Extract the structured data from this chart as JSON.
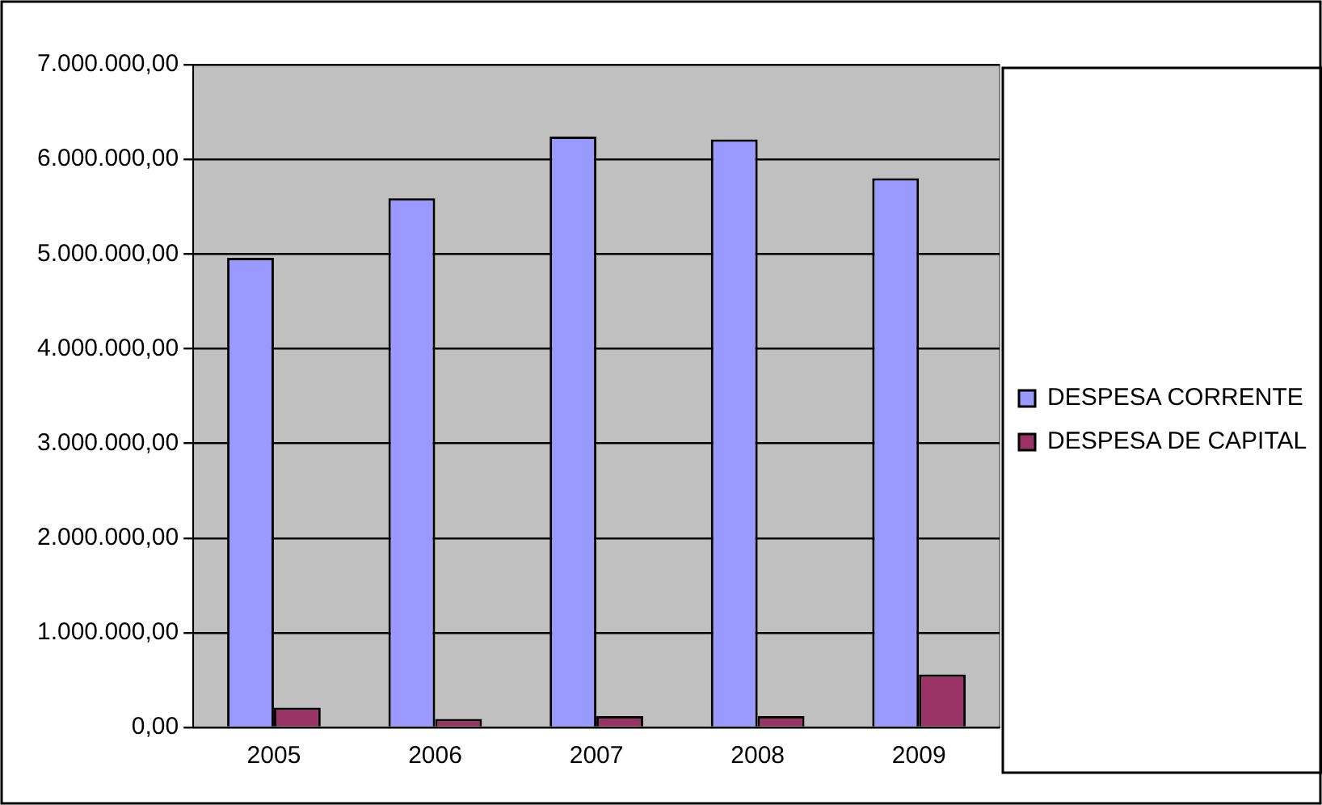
{
  "chart_data": {
    "type": "bar",
    "categories": [
      "2005",
      "2006",
      "2007",
      "2008",
      "2009"
    ],
    "series": [
      {
        "name": "DESPESA CORRENTE",
        "color": "#9999ff",
        "values": [
          4960000,
          5590000,
          6240000,
          6210000,
          5800000
        ]
      },
      {
        "name": "DESPESA DE CAPITAL",
        "color": "#993366",
        "values": [
          210000,
          90000,
          120000,
          120000,
          560000
        ]
      }
    ],
    "ylim": [
      0,
      7000000
    ],
    "yticks": [
      {
        "value": 0,
        "label": "0,00"
      },
      {
        "value": 1000000,
        "label": "1.000.000,00"
      },
      {
        "value": 2000000,
        "label": "2.000.000,00"
      },
      {
        "value": 3000000,
        "label": "3.000.000,00"
      },
      {
        "value": 4000000,
        "label": "4.000.000,00"
      },
      {
        "value": 5000000,
        "label": "5.000.000,00"
      },
      {
        "value": 6000000,
        "label": "6.000.000,00"
      },
      {
        "value": 7000000,
        "label": "7.000.000,00"
      }
    ],
    "grid": "y",
    "legend": "right"
  }
}
